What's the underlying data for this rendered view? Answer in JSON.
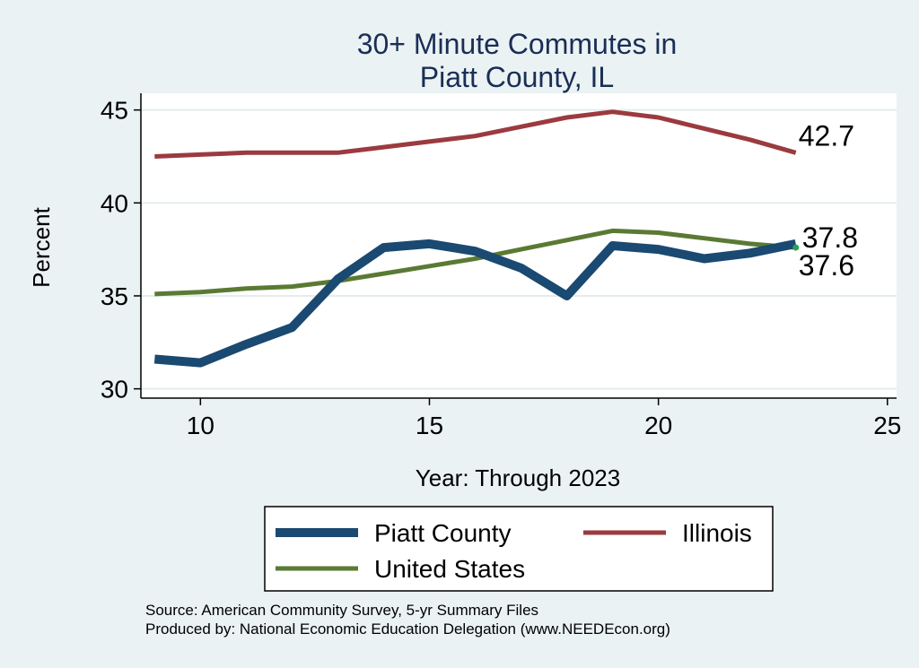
{
  "chart_data": {
    "type": "line",
    "title_lines": [
      "30+ Minute Commutes in",
      "Piatt County, IL"
    ],
    "xlabel": "Year: Through 2023",
    "ylabel": "Percent",
    "xlim": [
      8.7,
      25.2
    ],
    "ylim": [
      29.5,
      45.9
    ],
    "xticks": [
      10,
      15,
      20,
      25
    ],
    "yticks": [
      30,
      35,
      40,
      45
    ],
    "grid": true,
    "legend_position": "bottom",
    "series": [
      {
        "name": "Piatt County",
        "color": "#1a4971",
        "width": 10,
        "x": [
          9,
          10,
          11,
          12,
          13,
          14,
          15,
          16,
          17,
          18,
          19,
          20,
          21,
          22,
          23
        ],
        "values": [
          31.6,
          31.4,
          32.4,
          33.3,
          35.9,
          37.6,
          37.8,
          37.4,
          36.5,
          35.0,
          37.7,
          37.5,
          37.0,
          37.3,
          37.8
        ],
        "end_label": "37.8"
      },
      {
        "name": "Illinois",
        "color": "#9b3a3f",
        "width": 5,
        "x": [
          9,
          10,
          11,
          12,
          13,
          14,
          15,
          16,
          17,
          18,
          19,
          20,
          21,
          22,
          23
        ],
        "values": [
          42.5,
          42.6,
          42.7,
          42.7,
          42.7,
          43.0,
          43.3,
          43.6,
          44.1,
          44.6,
          44.9,
          44.6,
          44.0,
          43.4,
          42.7
        ],
        "end_label": "42.7"
      },
      {
        "name": "United States",
        "color": "#5a7a34",
        "width": 5,
        "x": [
          9,
          10,
          11,
          12,
          13,
          14,
          15,
          16,
          17,
          18,
          19,
          20,
          21,
          22,
          23
        ],
        "values": [
          35.1,
          35.2,
          35.4,
          35.5,
          35.8,
          36.2,
          36.6,
          37.0,
          37.5,
          38.0,
          38.5,
          38.4,
          38.1,
          37.8,
          37.6
        ],
        "end_label": "37.6"
      }
    ]
  },
  "source_note": "Source: American Community Survey, 5-yr Summary Files",
  "produced_by": "Produced by: National Economic Education Delegation (www.NEEDEcon.org)"
}
